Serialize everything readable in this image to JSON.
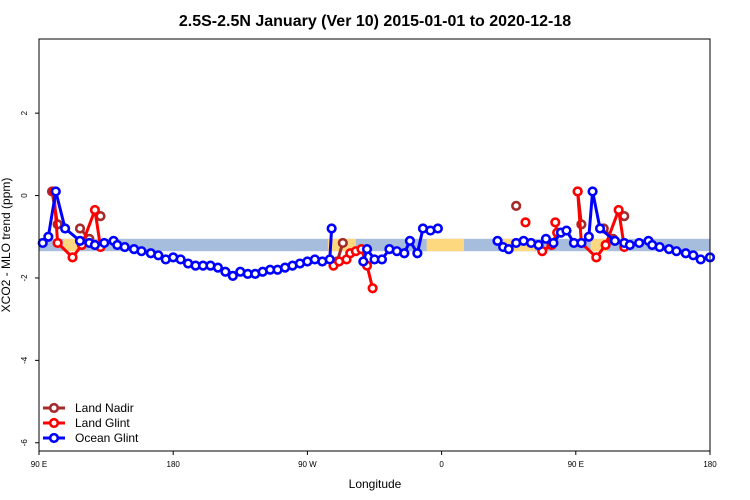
{
  "chart_data": {
    "type": "line",
    "title": "2.5S-2.5N January (Ver 10)   2015-01-01 to 2020-12-18",
    "xlabel": "Longitude",
    "ylabel": "XCO2 - MLO trend (ppm)",
    "xlim": [
      90,
      450
    ],
    "ylim": [
      -6.2,
      3.8
    ],
    "x_ticks": [
      {
        "value": 90,
        "label": "90 E"
      },
      {
        "value": 162,
        "label": "180"
      },
      {
        "value": 234,
        "label": "90 W"
      },
      {
        "value": 306,
        "label": "0"
      },
      {
        "value": 378,
        "label": "90 E"
      },
      {
        "value": 450,
        "label": "180"
      }
    ],
    "y_ticks": [
      {
        "value": -6,
        "label": "-6"
      },
      {
        "value": -4,
        "label": "-4"
      },
      {
        "value": -2,
        "label": "-2"
      },
      {
        "value": 0,
        "label": "0"
      },
      {
        "value": 2,
        "label": "2"
      }
    ],
    "legend_position": "bottom-left",
    "grid": false,
    "bands": [
      {
        "color": "#a6bddd",
        "segments": [
          [
            90,
            450
          ]
        ],
        "y": [
          -1.35,
          -1.05
        ]
      },
      {
        "color": "#fdd87f",
        "segments": [
          [
            103,
            112
          ],
          [
            245,
            260
          ],
          [
            298,
            318
          ],
          [
            339,
            356
          ],
          [
            386,
            395
          ]
        ],
        "y": [
          -1.35,
          -1.05
        ]
      }
    ],
    "series": [
      {
        "name": "Land Nadir",
        "color": "#a52a2a",
        "points": [
          [
            97,
            0.1
          ],
          [
            100,
            -0.7
          ],
          [
            112,
            -0.8
          ],
          [
            117,
            -1.05
          ],
          [
            123,
            -0.5
          ],
          [
            250,
            -1.6
          ],
          [
            253,
            -1.15
          ],
          [
            346,
            -0.25
          ],
          [
            379,
            0.1
          ],
          [
            381,
            -0.7
          ],
          [
            393,
            -0.8
          ],
          [
            398,
            -1.05
          ],
          [
            404,
            -0.5
          ]
        ],
        "segments": [
          [
            [
              97,
              0.1
            ],
            [
              100,
              -0.7
            ]
          ],
          [
            [
              112,
              -0.8
            ],
            [
              117,
              -1.05
            ]
          ],
          [
            [
              250,
              -1.6
            ],
            [
              253,
              -1.15
            ]
          ],
          [
            [
              379,
              0.1
            ],
            [
              381,
              -0.7
            ]
          ],
          [
            [
              393,
              -0.8
            ],
            [
              398,
              -1.05
            ]
          ]
        ]
      },
      {
        "name": "Land Glint",
        "color": "#ff0000",
        "points": [
          [
            98,
            0.1
          ],
          [
            100,
            -1.15
          ],
          [
            108,
            -1.5
          ],
          [
            113,
            -1.2
          ],
          [
            120,
            -0.35
          ],
          [
            123,
            -1.25
          ],
          [
            248,
            -1.7
          ],
          [
            251,
            -1.6
          ],
          [
            255,
            -1.55
          ],
          [
            257,
            -1.4
          ],
          [
            260,
            -1.35
          ],
          [
            263,
            -1.3
          ],
          [
            266,
            -1.7
          ],
          [
            269,
            -2.25
          ],
          [
            351,
            -0.65
          ],
          [
            360,
            -1.35
          ],
          [
            365,
            -1.2
          ],
          [
            368,
            -0.9
          ],
          [
            367,
            -0.65
          ],
          [
            379,
            0.1
          ],
          [
            381,
            -1.15
          ],
          [
            389,
            -1.5
          ],
          [
            394,
            -1.2
          ],
          [
            401,
            -0.35
          ],
          [
            404,
            -1.25
          ]
        ],
        "segments": [
          [
            [
              98,
              0.1
            ],
            [
              100,
              -1.15
            ],
            [
              108,
              -1.5
            ],
            [
              113,
              -1.2
            ],
            [
              120,
              -0.35
            ],
            [
              123,
              -1.25
            ]
          ],
          [
            [
              248,
              -1.7
            ],
            [
              251,
              -1.6
            ],
            [
              255,
              -1.55
            ],
            [
              257,
              -1.4
            ],
            [
              260,
              -1.35
            ],
            [
              263,
              -1.3
            ],
            [
              266,
              -1.7
            ],
            [
              269,
              -2.25
            ]
          ],
          [
            [
              360,
              -1.35
            ],
            [
              365,
              -1.2
            ],
            [
              368,
              -0.9
            ],
            [
              367,
              -0.65
            ]
          ],
          [
            [
              379,
              0.1
            ],
            [
              381,
              -1.15
            ],
            [
              389,
              -1.5
            ],
            [
              394,
              -1.2
            ],
            [
              401,
              -0.35
            ],
            [
              404,
              -1.25
            ]
          ]
        ]
      },
      {
        "name": "Ocean Glint",
        "color": "#0000ff",
        "points": [
          [
            92,
            -1.15
          ],
          [
            95,
            -1.0
          ],
          [
            99,
            0.1
          ],
          [
            104,
            -0.8
          ],
          [
            112,
            -1.1
          ],
          [
            117,
            -1.15
          ],
          [
            120,
            -1.2
          ],
          [
            125,
            -1.15
          ],
          [
            130,
            -1.1
          ],
          [
            132,
            -1.2
          ],
          [
            136,
            -1.25
          ],
          [
            141,
            -1.3
          ],
          [
            145,
            -1.35
          ],
          [
            150,
            -1.4
          ],
          [
            154,
            -1.45
          ],
          [
            158,
            -1.55
          ],
          [
            162,
            -1.5
          ],
          [
            166,
            -1.55
          ],
          [
            170,
            -1.65
          ],
          [
            174,
            -1.7
          ],
          [
            178,
            -1.7
          ],
          [
            182,
            -1.7
          ],
          [
            186,
            -1.75
          ],
          [
            190,
            -1.85
          ],
          [
            194,
            -1.95
          ],
          [
            198,
            -1.85
          ],
          [
            202,
            -1.9
          ],
          [
            206,
            -1.9
          ],
          [
            210,
            -1.85
          ],
          [
            214,
            -1.8
          ],
          [
            218,
            -1.8
          ],
          [
            222,
            -1.75
          ],
          [
            226,
            -1.7
          ],
          [
            230,
            -1.65
          ],
          [
            234,
            -1.6
          ],
          [
            238,
            -1.55
          ],
          [
            242,
            -1.6
          ],
          [
            246,
            -1.55
          ],
          [
            247,
            -0.8
          ],
          [
            264,
            -1.6
          ],
          [
            266,
            -1.3
          ],
          [
            270,
            -1.55
          ],
          [
            274,
            -1.55
          ],
          [
            278,
            -1.3
          ],
          [
            282,
            -1.35
          ],
          [
            286,
            -1.4
          ],
          [
            289,
            -1.1
          ],
          [
            293,
            -1.4
          ],
          [
            296,
            -0.8
          ],
          [
            300,
            -0.85
          ],
          [
            304,
            -0.8
          ],
          [
            336,
            -1.1
          ],
          [
            339,
            -1.25
          ],
          [
            342,
            -1.3
          ],
          [
            346,
            -1.15
          ],
          [
            350,
            -1.1
          ],
          [
            354,
            -1.15
          ],
          [
            358,
            -1.2
          ],
          [
            362,
            -1.05
          ],
          [
            366,
            -1.15
          ],
          [
            370,
            -0.9
          ],
          [
            373,
            -0.85
          ],
          [
            377,
            -1.15
          ],
          [
            381,
            -1.15
          ],
          [
            385,
            -1.0
          ],
          [
            387,
            0.1
          ],
          [
            391,
            -0.8
          ],
          [
            399,
            -1.1
          ],
          [
            404,
            -1.15
          ],
          [
            407,
            -1.2
          ],
          [
            412,
            -1.15
          ],
          [
            417,
            -1.1
          ],
          [
            419,
            -1.2
          ],
          [
            423,
            -1.25
          ],
          [
            428,
            -1.3
          ],
          [
            432,
            -1.35
          ],
          [
            437,
            -1.4
          ],
          [
            441,
            -1.45
          ],
          [
            445,
            -1.55
          ],
          [
            450,
            -1.5
          ]
        ],
        "segments": [
          [
            [
              92,
              -1.15
            ],
            [
              95,
              -1.0
            ],
            [
              99,
              0.1
            ],
            [
              104,
              -0.8
            ],
            [
              112,
              -1.1
            ],
            [
              117,
              -1.15
            ],
            [
              120,
              -1.2
            ],
            [
              125,
              -1.15
            ],
            [
              130,
              -1.1
            ],
            [
              132,
              -1.2
            ],
            [
              136,
              -1.25
            ],
            [
              141,
              -1.3
            ],
            [
              145,
              -1.35
            ],
            [
              150,
              -1.4
            ],
            [
              154,
              -1.45
            ],
            [
              158,
              -1.55
            ],
            [
              162,
              -1.5
            ],
            [
              166,
              -1.55
            ],
            [
              170,
              -1.65
            ],
            [
              174,
              -1.7
            ],
            [
              178,
              -1.7
            ],
            [
              182,
              -1.7
            ],
            [
              186,
              -1.75
            ],
            [
              190,
              -1.85
            ],
            [
              194,
              -1.95
            ],
            [
              198,
              -1.85
            ],
            [
              202,
              -1.9
            ],
            [
              206,
              -1.9
            ],
            [
              210,
              -1.85
            ],
            [
              214,
              -1.8
            ],
            [
              218,
              -1.8
            ],
            [
              222,
              -1.75
            ],
            [
              226,
              -1.7
            ],
            [
              230,
              -1.65
            ],
            [
              234,
              -1.6
            ],
            [
              238,
              -1.55
            ],
            [
              242,
              -1.6
            ],
            [
              246,
              -1.55
            ],
            [
              247,
              -0.8
            ]
          ],
          [
            [
              264,
              -1.6
            ],
            [
              266,
              -1.3
            ],
            [
              270,
              -1.55
            ],
            [
              274,
              -1.55
            ],
            [
              278,
              -1.3
            ],
            [
              282,
              -1.35
            ],
            [
              286,
              -1.4
            ],
            [
              289,
              -1.1
            ],
            [
              293,
              -1.4
            ],
            [
              296,
              -0.8
            ],
            [
              300,
              -0.85
            ],
            [
              304,
              -0.8
            ]
          ],
          [
            [
              336,
              -1.1
            ],
            [
              339,
              -1.25
            ],
            [
              342,
              -1.3
            ],
            [
              346,
              -1.15
            ],
            [
              350,
              -1.1
            ],
            [
              354,
              -1.15
            ],
            [
              358,
              -1.2
            ],
            [
              362,
              -1.05
            ],
            [
              366,
              -1.15
            ],
            [
              370,
              -0.9
            ],
            [
              373,
              -0.85
            ],
            [
              377,
              -1.15
            ],
            [
              381,
              -1.15
            ],
            [
              385,
              -1.0
            ],
            [
              387,
              0.1
            ],
            [
              391,
              -0.8
            ],
            [
              399,
              -1.1
            ],
            [
              404,
              -1.15
            ],
            [
              407,
              -1.2
            ],
            [
              412,
              -1.15
            ],
            [
              417,
              -1.1
            ],
            [
              419,
              -1.2
            ],
            [
              423,
              -1.25
            ],
            [
              428,
              -1.3
            ],
            [
              432,
              -1.35
            ],
            [
              437,
              -1.4
            ],
            [
              441,
              -1.45
            ],
            [
              445,
              -1.55
            ],
            [
              450,
              -1.5
            ]
          ]
        ]
      }
    ]
  }
}
